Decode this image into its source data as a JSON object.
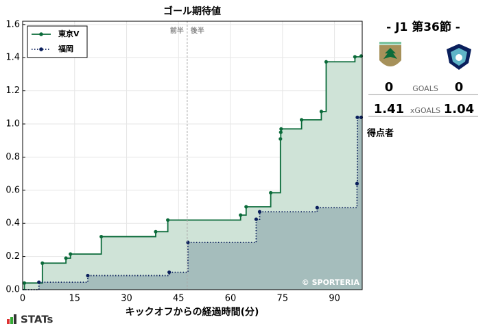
{
  "chart_data": {
    "type": "step",
    "title": "ゴール期待値",
    "x_label": "キックオフからの経過時間(分)",
    "xlim": [
      0,
      98
    ],
    "xticks": [
      0,
      15,
      30,
      45,
      60,
      75,
      90
    ],
    "ylim": [
      0,
      1.62
    ],
    "yticks": [
      {
        "value": 0,
        "label": "0.0"
      },
      0.2,
      0.4,
      0.6,
      0.8,
      {
        "value": 1,
        "label": "1.0"
      },
      1.2,
      1.4,
      1.6
    ],
    "grid": true,
    "legend": "upper left",
    "halftime": {
      "x": 47.5,
      "labels": [
        "前半",
        "後半"
      ]
    },
    "watermark": "© SPORTERIA",
    "series": [
      {
        "name": "東京V",
        "color": "#0b6b3a",
        "fill": "#cfe3d7",
        "line_style": "solid",
        "x": [
          0.5,
          5.7,
          12.5,
          13.8,
          22.7,
          38.4,
          41.9,
          62.9,
          64.5,
          71.6,
          74.4,
          74.5,
          74.6,
          80.5,
          86.2,
          87.6,
          95.9,
          97.7
        ],
        "values": [
          0.04,
          0.16,
          0.19,
          0.215,
          0.32,
          0.35,
          0.42,
          0.45,
          0.5,
          0.585,
          0.91,
          0.95,
          0.97,
          1.025,
          1.075,
          1.375,
          1.405,
          1.41
        ]
      },
      {
        "name": "福岡",
        "color": "#0a1f5c",
        "fill": "#a2baba",
        "line_style": "dotted",
        "x": [
          4.7,
          18.8,
          42.3,
          47.7,
          67.4,
          68.4,
          85.0,
          96.5,
          96.6,
          97.7
        ],
        "values": [
          0.045,
          0.085,
          0.105,
          0.285,
          0.425,
          0.47,
          0.495,
          0.64,
          1.04,
          1.04
        ]
      }
    ]
  },
  "match": {
    "round": "- J1 第36節 -",
    "home_goals": 0,
    "goals_label": "GOALS",
    "away_goals": 0,
    "home_xg": 1.41,
    "xg_label": "xGOALS",
    "away_xg": 1.04,
    "scorers_label": "得点者"
  },
  "brand": "STATs"
}
